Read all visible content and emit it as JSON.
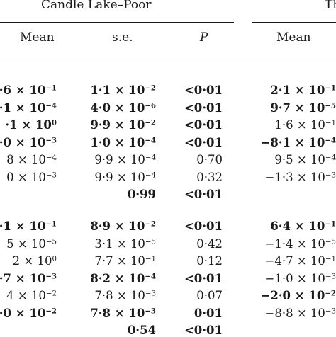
{
  "header": {
    "group_left": "Candle Lake–Poor",
    "group_right": "Th",
    "col_mean": "Mean",
    "col_se": "s.e.",
    "col_p": "P",
    "col_mean_right": "Mean"
  },
  "rows_block1": [
    {
      "mean": "·6 × 10",
      "mean_exp": "−1",
      "mean_bold": true,
      "se": "1·1 × 10",
      "se_exp": "−2",
      "se_bold": true,
      "p": "<0·01",
      "p_bold": true,
      "mean2": "2·1 × 10",
      "mean2_exp": "−1",
      "mean2_bold": true
    },
    {
      "mean": "·1 × 10",
      "mean_exp": "−4",
      "mean_bold": true,
      "se": "4·0 × 10",
      "se_exp": "−6",
      "se_bold": true,
      "p": "<0·01",
      "p_bold": true,
      "mean2": "9·7 × 10",
      "mean2_exp": "−5",
      "mean2_bold": true
    },
    {
      "mean": "·1 × 10",
      "mean_exp": "0",
      "mean_bold": true,
      "se": "9·9 × 10",
      "se_exp": "−2",
      "se_bold": true,
      "p": "<0·01",
      "p_bold": true,
      "mean2": "1·6 × 10",
      "mean2_exp": "−1",
      "mean2_bold": false
    },
    {
      "mean": "·0 × 10",
      "mean_exp": "−3",
      "mean_bold": true,
      "se": "1·0 × 10",
      "se_exp": "−4",
      "se_bold": true,
      "p": "<0·01",
      "p_bold": true,
      "mean2": "−8·1 × 10",
      "mean2_exp": "−4",
      "mean2_bold": true
    },
    {
      "mean": "8 × 10",
      "mean_exp": "−4",
      "mean_bold": false,
      "se": "9·9 × 10",
      "se_exp": "−4",
      "se_bold": false,
      "p": "0·70",
      "p_bold": false,
      "mean2": "9·5 × 10",
      "mean2_exp": "−4",
      "mean2_bold": false
    },
    {
      "mean": "0 × 10",
      "mean_exp": "−3",
      "mean_bold": false,
      "se": "9·9 × 10",
      "se_exp": "−4",
      "se_bold": false,
      "p": "0·32",
      "p_bold": false,
      "mean2": "−1·3 × 10",
      "mean2_exp": "−3",
      "mean2_bold": false
    },
    {
      "mean": "",
      "mean_exp": "",
      "mean_bold": false,
      "se": "0·99",
      "se_exp": "",
      "se_bold": true,
      "p": "<0·01",
      "p_bold": true,
      "mean2": "",
      "mean2_exp": "",
      "mean2_bold": false
    }
  ],
  "rows_block2": [
    {
      "mean": "·1 × 10",
      "mean_exp": "−1",
      "mean_bold": true,
      "se": "8·9 × 10",
      "se_exp": "−2",
      "se_bold": true,
      "p": "<0·01",
      "p_bold": true,
      "mean2": "6·4 × 10",
      "mean2_exp": "−1",
      "mean2_bold": true
    },
    {
      "mean": "5 × 10",
      "mean_exp": "−5",
      "mean_bold": false,
      "se": "3·1 × 10",
      "se_exp": "−5",
      "se_bold": false,
      "p": "0·42",
      "p_bold": false,
      "mean2": "−1·4 × 10",
      "mean2_exp": "−5",
      "mean2_bold": false
    },
    {
      "mean": "2 × 10",
      "mean_exp": "0",
      "mean_bold": false,
      "se": "7·7 × 10",
      "se_exp": "−1",
      "se_bold": false,
      "p": "0·12",
      "p_bold": false,
      "mean2": "−4·7 × 10",
      "mean2_exp": "−1",
      "mean2_bold": false
    },
    {
      "mean": "·7 × 10",
      "mean_exp": "−3",
      "mean_bold": true,
      "se": "8·2 × 10",
      "se_exp": "−4",
      "se_bold": true,
      "p": "<0·01",
      "p_bold": true,
      "mean2": "−1·0 × 10",
      "mean2_exp": "−3",
      "mean2_bold": false
    },
    {
      "mean": "4 × 10",
      "mean_exp": "−2",
      "mean_bold": false,
      "se": "7·8 × 10",
      "se_exp": "−3",
      "se_bold": false,
      "p": "0·07",
      "p_bold": false,
      "mean2": "−2·0 × 10",
      "mean2_exp": "−2",
      "mean2_bold": true
    },
    {
      "mean": "·0 × 10",
      "mean_exp": "−2",
      "mean_bold": true,
      "se": "7·8 × 10",
      "se_exp": "−3",
      "se_bold": true,
      "p": "0·01",
      "p_bold": true,
      "mean2": "−8·8 × 10",
      "mean2_exp": "−3",
      "mean2_bold": false
    },
    {
      "mean": "",
      "mean_exp": "",
      "mean_bold": false,
      "se": "0·54",
      "se_exp": "",
      "se_bold": true,
      "p": "<0·01",
      "p_bold": true,
      "mean2": "",
      "mean2_exp": "",
      "mean2_bold": false
    }
  ]
}
